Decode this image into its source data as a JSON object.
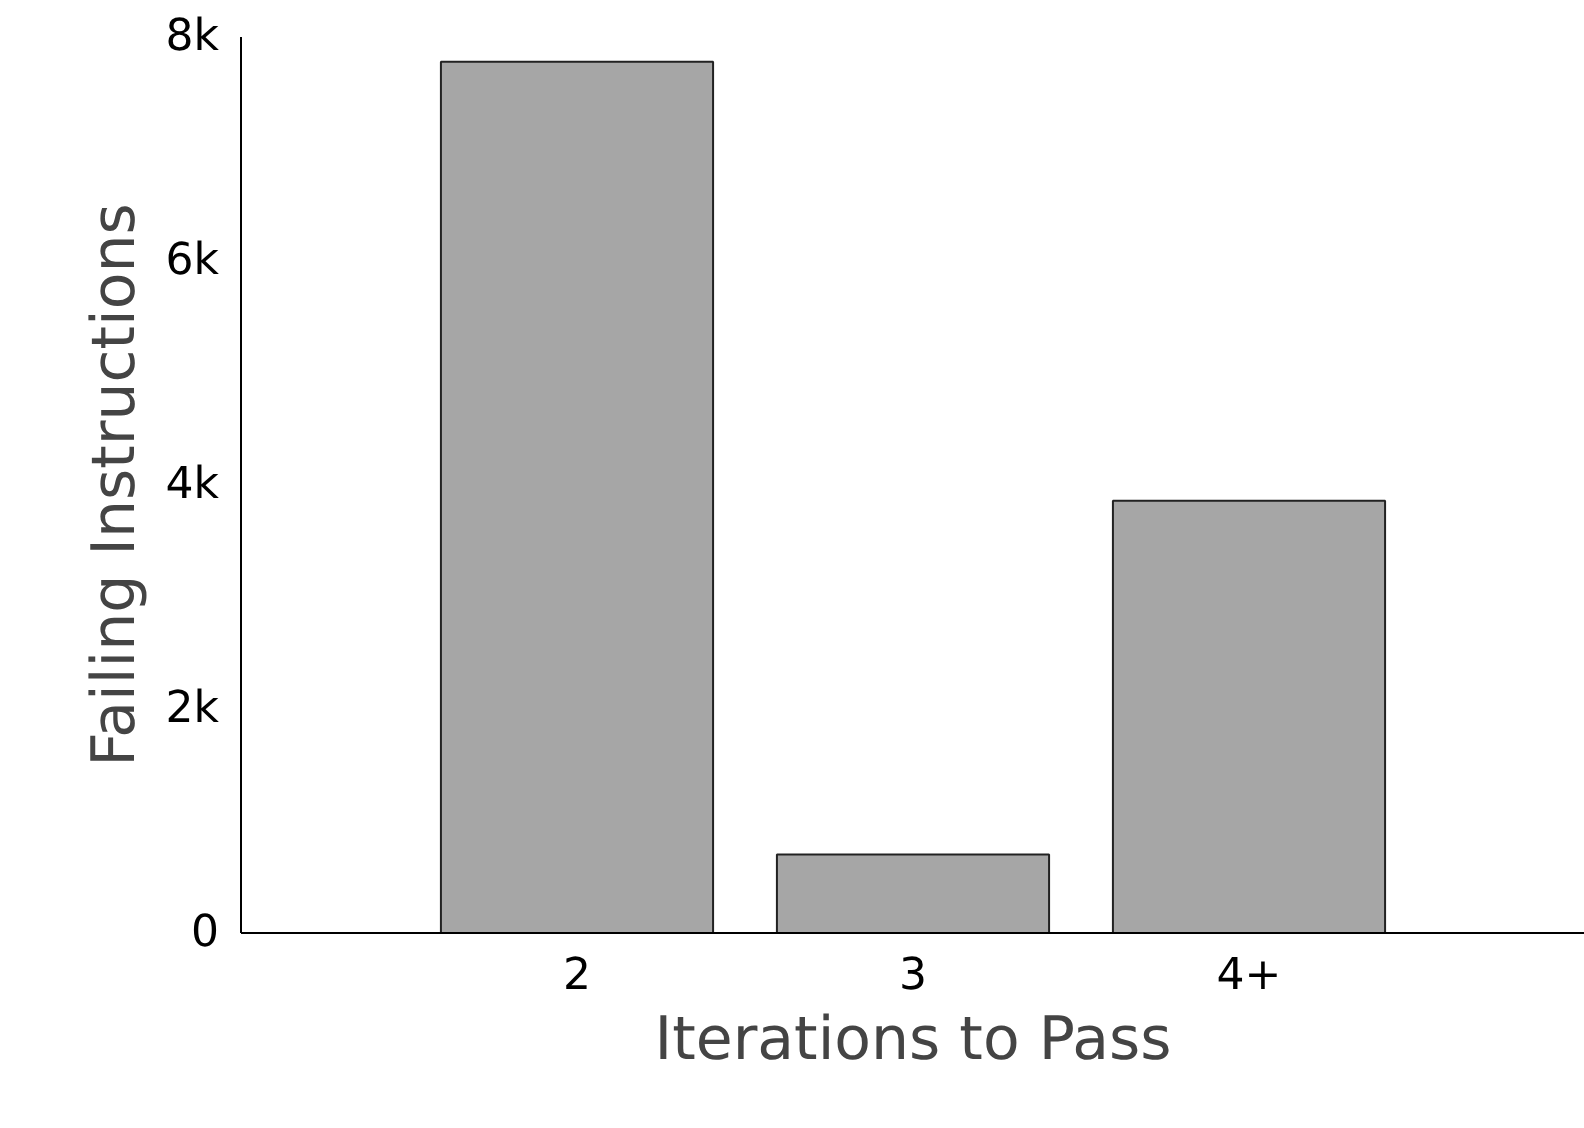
{
  "chart_data": {
    "type": "bar",
    "xlabel": "Iterations to Pass",
    "ylabel": "Failing Instructions",
    "categories": [
      "2",
      "3",
      "4+"
    ],
    "values": [
      7780,
      700,
      3860
    ],
    "color": "#a6a6a6",
    "ylim": [
      0,
      8000
    ],
    "yticks": [
      0,
      {
        "value": 2000,
        "label": "2k"
      },
      {
        "value": 4000,
        "label": "4k"
      },
      {
        "value": 6000,
        "label": "6k"
      },
      {
        "value": 8000,
        "label": "8k"
      }
    ],
    "grid": false
  }
}
